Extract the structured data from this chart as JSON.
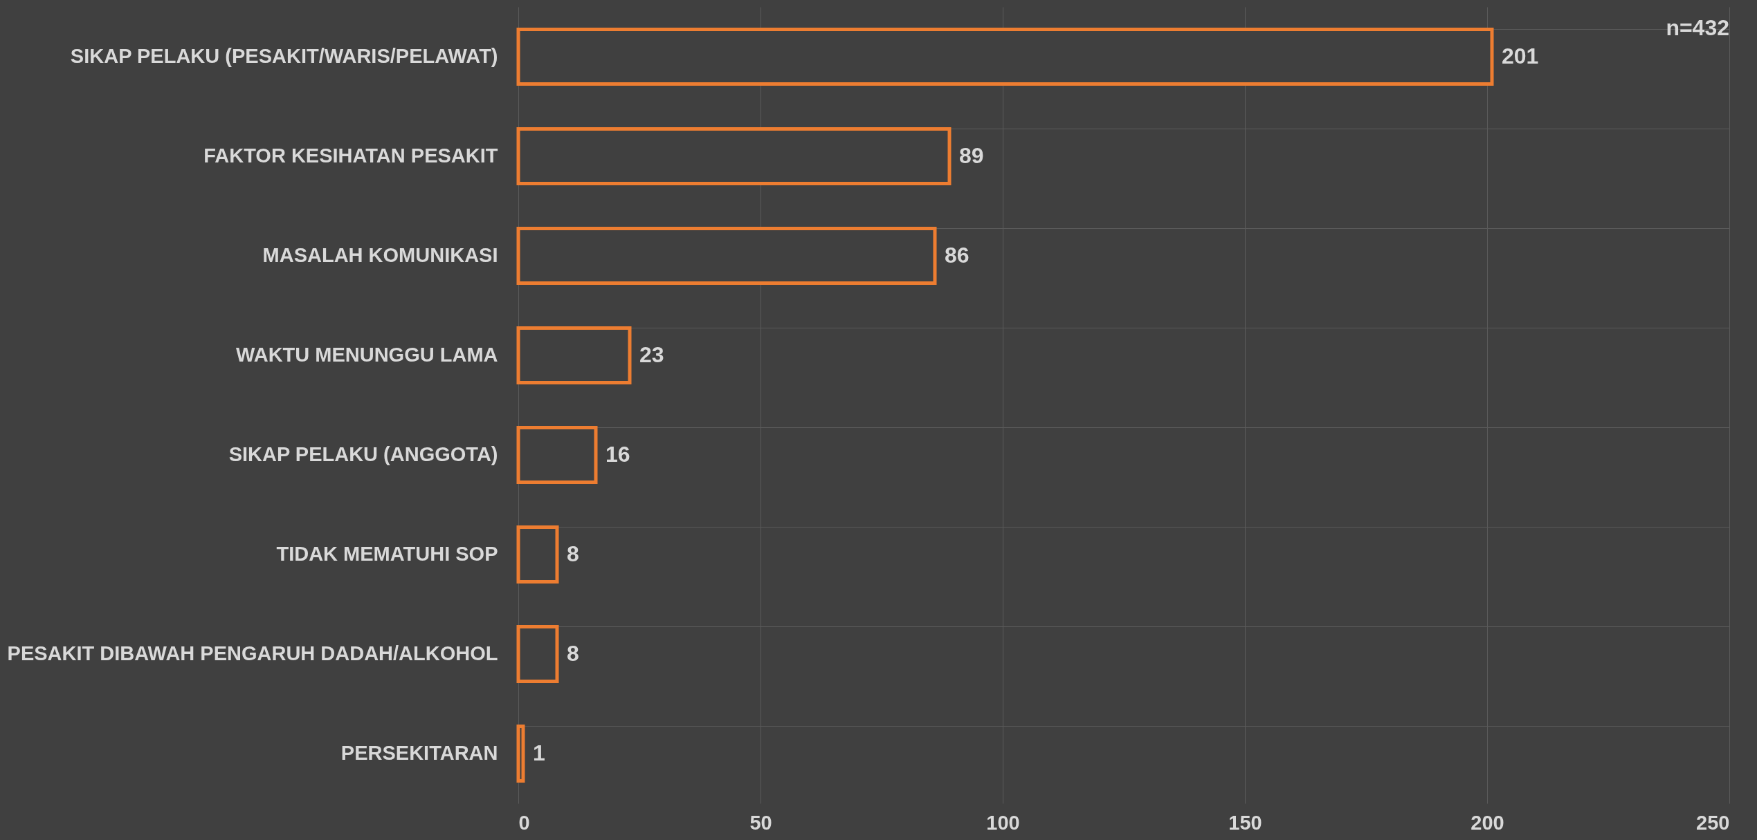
{
  "chart_data": {
    "type": "bar",
    "orientation": "horizontal",
    "categories": [
      "SIKAP PELAKU (PESAKIT/WARIS/PELAWAT)",
      "FAKTOR KESIHATAN PESAKIT",
      "MASALAH KOMUNIKASI",
      "WAKTU MENUNGGU LAMA",
      "SIKAP PELAKU (ANGGOTA)",
      "TIDAK MEMATUHI SOP",
      "PESAKIT DIBAWAH PENGARUH DADAH/ALKOHOL",
      "PERSEKITARAN"
    ],
    "series": [
      {
        "color": "#ed7d31",
        "values": [
          201,
          89,
          86,
          23,
          16,
          8,
          8,
          1
        ]
      }
    ],
    "xlim": [
      0,
      250
    ],
    "xticks": [
      0,
      50,
      100,
      150,
      200,
      250
    ],
    "grid": true,
    "data_labels": true,
    "annotations": [
      "n=432"
    ]
  }
}
